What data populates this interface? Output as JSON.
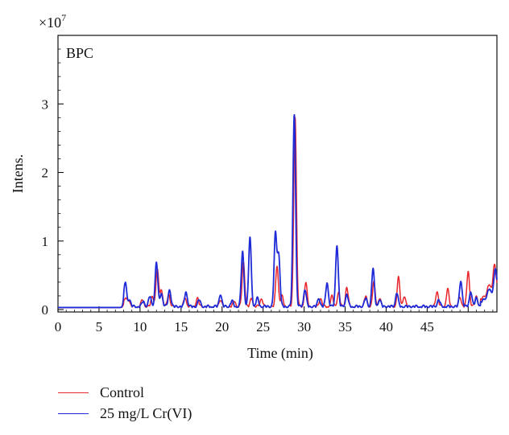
{
  "chart_data": {
    "type": "line",
    "inset_label": "BPC",
    "xlabel": "Time (min)",
    "ylabel": "Intens.",
    "y_multiplier": "×10",
    "y_exponent": "7",
    "xlim": [
      0,
      53.5
    ],
    "ylim": [
      0,
      4.0
    ],
    "x_ticks": [
      0,
      5,
      10,
      15,
      20,
      25,
      30,
      35,
      40,
      45
    ],
    "x_tick_labels": [
      "0",
      "5",
      "10",
      "15",
      "20",
      "25",
      "30",
      "35",
      "40",
      "45"
    ],
    "x_minor_ticks": [
      50
    ],
    "y_ticks": [
      0,
      1,
      2,
      3
    ],
    "y_tick_labels": [
      "0",
      "1",
      "2",
      "3"
    ],
    "grid": false,
    "legend_position": "bottom-left",
    "baseline": 0.03,
    "series": [
      {
        "name": "Control",
        "color": "#e8262b",
        "peaks": [
          [
            8.2,
            0.12
          ],
          [
            8.6,
            0.1
          ],
          [
            10.3,
            0.1
          ],
          [
            11.5,
            0.15
          ],
          [
            12.1,
            0.55
          ],
          [
            12.6,
            0.25
          ],
          [
            13.5,
            0.18
          ],
          [
            15.5,
            0.13
          ],
          [
            17,
            0.12
          ],
          [
            19.8,
            0.1
          ],
          [
            21.5,
            0.08
          ],
          [
            22.6,
            0.65
          ],
          [
            23.6,
            0.12
          ],
          [
            24.8,
            0.12
          ],
          [
            26.7,
            0.6
          ],
          [
            27.3,
            0.15
          ],
          [
            28.9,
            2.78
          ],
          [
            30.2,
            0.35
          ],
          [
            32,
            0.12
          ],
          [
            33.4,
            0.15
          ],
          [
            34.2,
            0.2
          ],
          [
            35.2,
            0.28
          ],
          [
            37.5,
            0.15
          ],
          [
            38.5,
            0.35
          ],
          [
            39.2,
            0.12
          ],
          [
            41.5,
            0.42
          ],
          [
            42.2,
            0.15
          ],
          [
            46.2,
            0.22
          ],
          [
            47.5,
            0.25
          ],
          [
            49,
            0.14
          ],
          [
            50,
            0.52
          ],
          [
            51,
            0.15
          ],
          [
            52.5,
            0.12
          ],
          [
            53.2,
            0.36
          ]
        ],
        "tail_rise": [
          [
            51.5,
            0.1
          ],
          [
            53.5,
            0.3
          ]
        ]
      },
      {
        "name": "25 mg/L Cr(VI)",
        "color": "#1f2bd6",
        "peaks": [
          [
            8.2,
            0.36
          ],
          [
            8.7,
            0.1
          ],
          [
            10.4,
            0.08
          ],
          [
            11.2,
            0.15
          ],
          [
            12,
            0.65
          ],
          [
            12.6,
            0.2
          ],
          [
            13.6,
            0.25
          ],
          [
            15.6,
            0.22
          ],
          [
            17.2,
            0.1
          ],
          [
            19.8,
            0.18
          ],
          [
            21.2,
            0.08
          ],
          [
            22.5,
            0.8
          ],
          [
            23.4,
            1.0
          ],
          [
            24.3,
            0.12
          ],
          [
            26.5,
            1.05
          ],
          [
            26.9,
            0.75
          ],
          [
            28.8,
            2.82
          ],
          [
            30.1,
            0.25
          ],
          [
            31.8,
            0.12
          ],
          [
            32.8,
            0.35
          ],
          [
            34,
            0.9
          ],
          [
            35.2,
            0.18
          ],
          [
            37.5,
            0.12
          ],
          [
            38.4,
            0.55
          ],
          [
            39.2,
            0.1
          ],
          [
            41.3,
            0.2
          ],
          [
            46.4,
            0.1
          ],
          [
            49.1,
            0.38
          ],
          [
            50.3,
            0.22
          ],
          [
            51,
            0.13
          ],
          [
            52.5,
            0.1
          ],
          [
            53.3,
            0.33
          ]
        ],
        "tail_rise": [
          [
            51.5,
            0.06
          ],
          [
            53.5,
            0.25
          ]
        ]
      }
    ]
  }
}
